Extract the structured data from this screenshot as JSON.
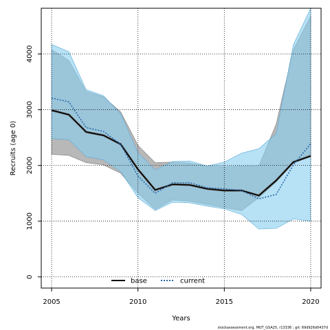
{
  "chart_data": {
    "type": "line",
    "title": "",
    "xlabel": "Years",
    "ylabel": "Recruits (age 0)",
    "xlim": [
      2004.4,
      2020.6
    ],
    "ylim": [
      -200,
      4820
    ],
    "xticks": [
      2005,
      2010,
      2015,
      2020
    ],
    "yticks": [
      0,
      1000,
      2000,
      3000,
      4000
    ],
    "grid": true,
    "legend_position": "bottom-center",
    "x": [
      2005,
      2006,
      2007,
      2008,
      2009,
      2010,
      2011,
      2012,
      2013,
      2014,
      2015,
      2016,
      2017,
      2018,
      2019,
      2020
    ],
    "series": [
      {
        "name": "base",
        "color": "#000000",
        "band_color": "#a0a0a0",
        "values": [
          2990,
          2910,
          2600,
          2540,
          2380,
          1930,
          1560,
          1660,
          1650,
          1580,
          1550,
          1550,
          1460,
          1730,
          2060,
          2170
        ],
        "lower": [
          2200,
          2180,
          2050,
          2010,
          1860,
          1500,
          1210,
          1380,
          1360,
          1300,
          1240,
          1190,
          1420,
          1700,
          2040,
          2160
        ],
        "upper": [
          4080,
          3880,
          3330,
          3230,
          2960,
          2360,
          2050,
          2060,
          2040,
          1990,
          1980,
          1990,
          1990,
          2740,
          4080,
          4680
        ]
      },
      {
        "name": "current",
        "color": "#1f63a8",
        "band_color": "#87cdef",
        "values": [
          3210,
          3140,
          2680,
          2610,
          2380,
          1810,
          1500,
          1690,
          1690,
          1600,
          1580,
          1550,
          1400,
          1480,
          2010,
          2390
        ],
        "lower": [
          2480,
          2460,
          2160,
          2100,
          1890,
          1420,
          1190,
          1340,
          1330,
          1270,
          1220,
          1120,
          860,
          870,
          1040,
          1000
        ],
        "upper": [
          4170,
          4040,
          3360,
          3250,
          2930,
          2230,
          1920,
          2070,
          2080,
          1990,
          2060,
          2220,
          2300,
          2570,
          4170,
          4820
        ]
      }
    ]
  },
  "footer": "stockassessment.org, MUT_GSA25, r13336 ; git: 69d926d0437d"
}
